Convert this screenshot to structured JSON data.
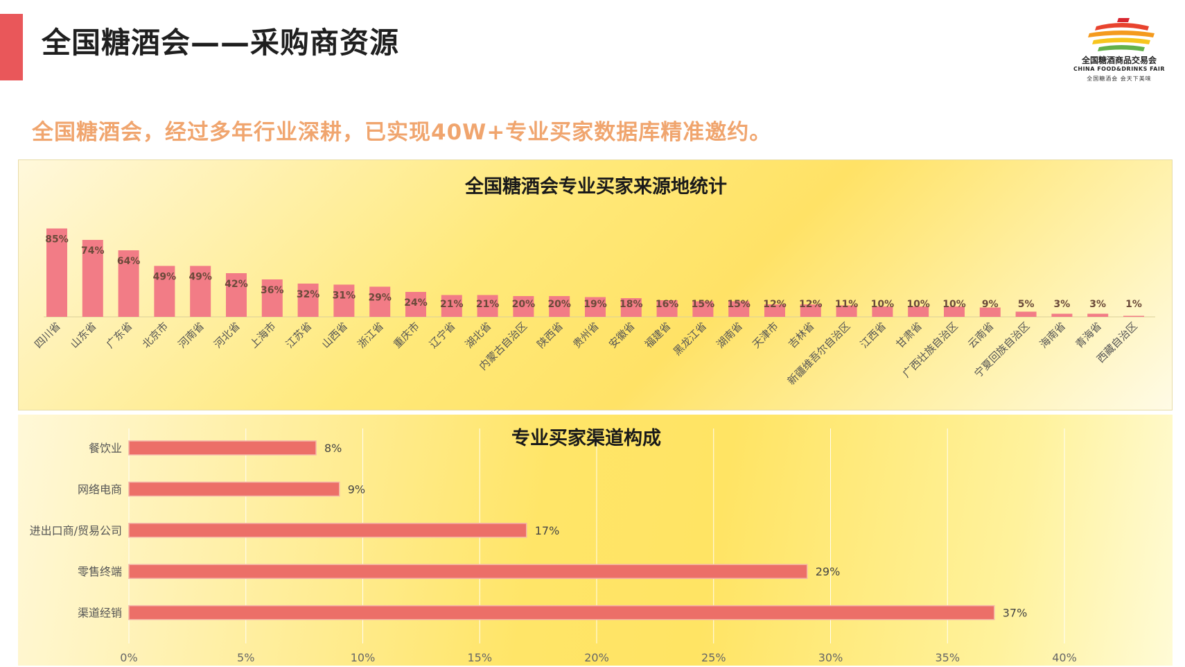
{
  "header": {
    "title": "全国糖酒会——采购商资源",
    "accent_color": "#e9575a"
  },
  "logo": {
    "name_cn": "全国糖酒商品交易会",
    "name_en": "CHINA FOOD&DRINKS FAIR",
    "slogan": "全国糖酒会  会天下美味"
  },
  "subtitle": "全国糖酒会，经过多年行业深耕，已实现40W+专业买家数据库精准邀约。",
  "chart_data": [
    {
      "type": "bar",
      "title": "全国糖酒会专业买家来源地统计",
      "categories": [
        "四川省",
        "山东省",
        "广东省",
        "北京市",
        "河南省",
        "河北省",
        "上海市",
        "江苏省",
        "山西省",
        "浙江省",
        "重庆市",
        "辽宁省",
        "湖北省",
        "内蒙古自治区",
        "陕西省",
        "贵州省",
        "安徽省",
        "福建省",
        "黑龙江省",
        "湖南省",
        "天津市",
        "吉林省",
        "新疆维吾尔自治区",
        "江西省",
        "甘肃省",
        "广西壮族自治区",
        "云南省",
        "宁夏回族自治区",
        "海南省",
        "青海省",
        "西藏自治区"
      ],
      "values": [
        85,
        74,
        64,
        49,
        49,
        42,
        36,
        32,
        31,
        29,
        24,
        21,
        21,
        20,
        20,
        19,
        18,
        16,
        15,
        15,
        12,
        12,
        11,
        10,
        10,
        10,
        9,
        5,
        3,
        3,
        1
      ],
      "labels": [
        "85%",
        "74%",
        "64%",
        "49%",
        "49%",
        "42%",
        "36%",
        "32%",
        "31%",
        "29%",
        "24%",
        "21%",
        "21%",
        "20%",
        "20%",
        "19%",
        "18%",
        "16%",
        "15%",
        "15%",
        "12%",
        "12%",
        "11%",
        "10%",
        "10%",
        "10%",
        "9%",
        "5%",
        "3%",
        "3%",
        "1%"
      ],
      "unit": "%",
      "ylim": [
        0,
        100
      ],
      "bar_color": "#f27c86"
    },
    {
      "type": "bar",
      "orientation": "horizontal",
      "title": "专业买家渠道构成",
      "categories": [
        "餐饮业",
        "网络电商",
        "进出口商/贸易公司",
        "零售终端",
        "渠道经销"
      ],
      "values": [
        8,
        9,
        17,
        29,
        37
      ],
      "labels": [
        "8%",
        "9%",
        "17%",
        "29%",
        "37%"
      ],
      "xlim": [
        0,
        40
      ],
      "xticks": [
        "0%",
        "5%",
        "10%",
        "15%",
        "20%",
        "25%",
        "30%",
        "35%",
        "40%"
      ],
      "grid": true,
      "bar_color": "#ec6f68"
    }
  ]
}
